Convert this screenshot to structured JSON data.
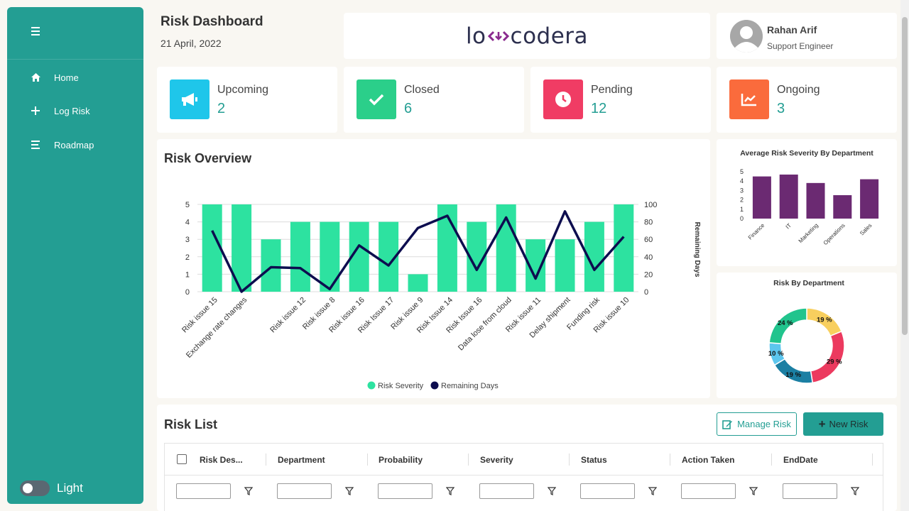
{
  "sidebar": {
    "items": [
      {
        "label": "Home",
        "icon": "home-icon"
      },
      {
        "label": "Log Risk",
        "icon": "plus-icon"
      },
      {
        "label": "Roadmap",
        "icon": "list-icon"
      }
    ],
    "theme_label": "Light",
    "color": "#239e93"
  },
  "header": {
    "title": "Risk Dashboard",
    "date": "21 April, 2022",
    "logo_left": "lo",
    "logo_right": "codera"
  },
  "profile": {
    "name": "Rahan Arif",
    "role": "Support Engineer"
  },
  "stats": [
    {
      "label": "Upcoming",
      "value": "2",
      "color": "#1fc6ea",
      "icon": "megaphone-icon"
    },
    {
      "label": "Closed",
      "value": "6",
      "color": "#2bcf8a",
      "icon": "check-icon"
    },
    {
      "label": "Pending",
      "value": "12",
      "color": "#f03c64",
      "icon": "clock-icon"
    },
    {
      "label": "Ongoing",
      "value": "3",
      "color": "#fa6b3c",
      "icon": "chart-line-icon"
    }
  ],
  "overview": {
    "title": "Risk Overview"
  },
  "chart_data": [
    {
      "type": "bar",
      "title": "",
      "categories": [
        "Risk issue 15",
        "Exchange rate changes",
        "",
        "Risk issue 12",
        "Risk issue 8",
        "Risk issue 16",
        "Risk Issue 17",
        "Risk issue 9",
        "Risk Issue 14",
        "Risk Issue 16",
        "Data lose from cloud",
        "Risk issue 11",
        "Delay shipment",
        "Funding risk",
        "Risk issue 10"
      ],
      "series": [
        {
          "name": "Risk Severity",
          "type": "bar",
          "axis": "left",
          "color": "#2de2a0",
          "values": [
            5,
            5,
            3,
            4,
            4,
            4,
            4,
            1,
            5,
            4,
            5,
            3,
            3,
            4,
            5
          ]
        },
        {
          "name": "Remaining Days",
          "type": "line",
          "axis": "right",
          "color": "#0d0d4f",
          "values": [
            70,
            0,
            28,
            27,
            3,
            53,
            30,
            73,
            87,
            25,
            85,
            15,
            92,
            25,
            63
          ]
        }
      ],
      "ylim": [
        0,
        5
      ],
      "y_ticks": [
        0,
        1,
        2,
        3,
        4,
        5
      ],
      "y2lim": [
        0,
        100
      ],
      "y2_ticks": [
        0,
        20,
        40,
        60,
        80,
        100
      ],
      "y2label": "Remaining Days",
      "legend": "bottom",
      "grid": true
    },
    {
      "type": "bar",
      "title": "Average Risk Severity By Department",
      "categories": [
        "Finance",
        "IT",
        "Marketing",
        "Operations",
        "Sales"
      ],
      "values": [
        4.5,
        4.7,
        3.8,
        2.5,
        4.2
      ],
      "ylim": [
        0,
        5
      ],
      "y_ticks": [
        0,
        1,
        2,
        3,
        4,
        5
      ],
      "color": "#6b2a72"
    },
    {
      "type": "pie",
      "title": "Risk By Department",
      "donut": true,
      "slices": [
        {
          "label": "19 %",
          "value": 19,
          "color": "#f8cf5e"
        },
        {
          "label": "29 %",
          "value": 29,
          "color": "#ec3a5f"
        },
        {
          "label": "19 %",
          "value": 19,
          "color": "#1b7fa3"
        },
        {
          "label": "10 %",
          "value": 10,
          "color": "#5cc6ee"
        },
        {
          "label": "24 %",
          "value": 24,
          "color": "#21c48d"
        }
      ]
    }
  ],
  "risk_list": {
    "title": "Risk List",
    "manage_label": "Manage Risk",
    "new_label": "New Risk",
    "columns": [
      "Risk Des...",
      "Department",
      "Probability",
      "Severity",
      "Status",
      "Action Taken",
      "EndDate"
    ]
  }
}
